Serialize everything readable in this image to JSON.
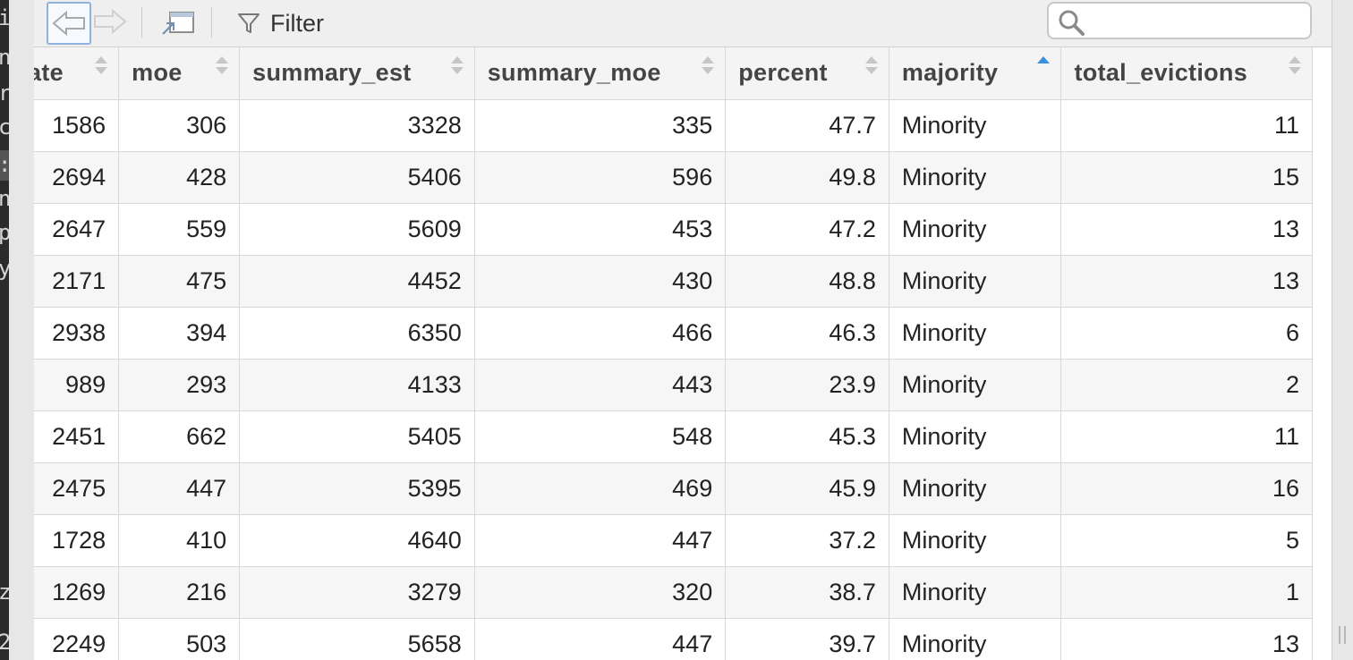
{
  "toolbar": {
    "filter_label": "Filter",
    "search_placeholder": "",
    "icons": [
      "back-arrow-icon",
      "forward-arrow-icon",
      "popout-window-icon",
      "filter-funnel-icon",
      "search-icon"
    ]
  },
  "left_strip_chars": [
    "i",
    "n",
    "r",
    "c",
    ":",
    "n",
    "p",
    "y",
    "z",
    "2"
  ],
  "table": {
    "columns": [
      {
        "label": "ate",
        "sort": "none"
      },
      {
        "label": "moe",
        "sort": "none"
      },
      {
        "label": "summary_est",
        "sort": "none"
      },
      {
        "label": "summary_moe",
        "sort": "none"
      },
      {
        "label": "percent",
        "sort": "none"
      },
      {
        "label": "majority",
        "sort": "ascending"
      },
      {
        "label": "total_evictions",
        "sort": "none"
      }
    ],
    "rows": [
      [
        "1586",
        "306",
        "3328",
        "335",
        "47.7",
        "Minority",
        "11"
      ],
      [
        "2694",
        "428",
        "5406",
        "596",
        "49.8",
        "Minority",
        "15"
      ],
      [
        "2647",
        "559",
        "5609",
        "453",
        "47.2",
        "Minority",
        "13"
      ],
      [
        "2171",
        "475",
        "4452",
        "430",
        "48.8",
        "Minority",
        "13"
      ],
      [
        "2938",
        "394",
        "6350",
        "466",
        "46.3",
        "Minority",
        "6"
      ],
      [
        "989",
        "293",
        "4133",
        "443",
        "23.9",
        "Minority",
        "2"
      ],
      [
        "2451",
        "662",
        "5405",
        "548",
        "45.3",
        "Minority",
        "11"
      ],
      [
        "2475",
        "447",
        "5395",
        "469",
        "45.9",
        "Minority",
        "16"
      ],
      [
        "1728",
        "410",
        "4640",
        "447",
        "37.2",
        "Minority",
        "5"
      ],
      [
        "1269",
        "216",
        "3279",
        "320",
        "38.7",
        "Minority",
        "1"
      ],
      [
        "2249",
        "503",
        "5658",
        "447",
        "39.7",
        "Minority",
        "13"
      ]
    ]
  },
  "colors": {
    "sort_active": "#3b8fe0",
    "header_bg": "#f4f4f4",
    "row_alt_bg": "#f6f6f6"
  }
}
